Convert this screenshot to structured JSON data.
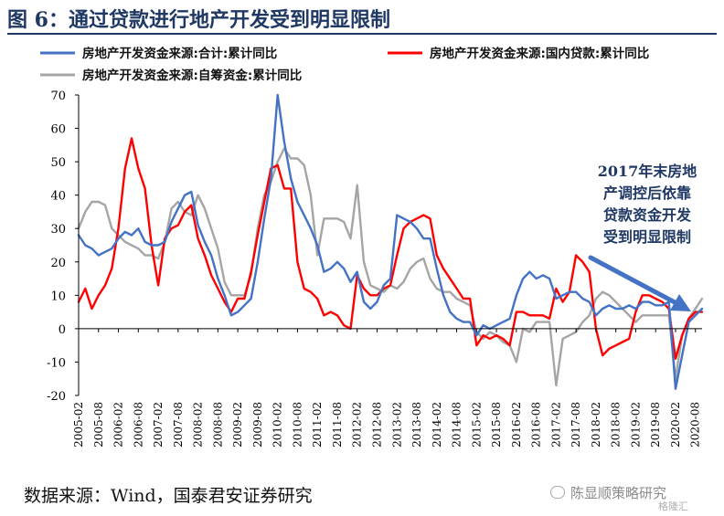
{
  "title": "图 6：通过贷款进行地产开发受到明显限制",
  "source": "数据来源：Wind，国泰君安证券研究",
  "watermark": "陈显顺策略研究",
  "watermark_sub": "格隆汇",
  "annotation": [
    "2017年末房地",
    "产调控后依靠",
    "贷款资金开发",
    "受到明显限制"
  ],
  "colors": {
    "title": "#1f3864",
    "total": "#4472c4",
    "loan": "#ff0000",
    "self": "#a5a5a5",
    "annotation": "#1f3864",
    "arrow": "#4472c4"
  },
  "chart_data": {
    "type": "line",
    "ylim": [
      -20,
      70
    ],
    "yticks": [
      -20,
      -10,
      0,
      10,
      20,
      30,
      40,
      50,
      60,
      70
    ],
    "xlim": [
      "2005-02",
      "2020-10"
    ],
    "xticks": [
      "2005-02",
      "2005-08",
      "2006-02",
      "2006-08",
      "2007-02",
      "2007-08",
      "2008-02",
      "2008-08",
      "2009-02",
      "2009-08",
      "2010-02",
      "2010-08",
      "2011-02",
      "2011-08",
      "2012-02",
      "2012-08",
      "2013-02",
      "2013-08",
      "2014-02",
      "2014-08",
      "2015-02",
      "2015-08",
      "2016-02",
      "2016-08",
      "2017-02",
      "2017-08",
      "2018-02",
      "2018-08",
      "2019-02",
      "2019-08",
      "2020-02",
      "2020-08"
    ],
    "legend_position": "top",
    "series": [
      {
        "name": "房地产开发资金来源:合计:累计同比",
        "color_key": "total",
        "points": [
          [
            "2005-02",
            28
          ],
          [
            "2005-04",
            25
          ],
          [
            "2005-06",
            24
          ],
          [
            "2005-08",
            22
          ],
          [
            "2005-10",
            23
          ],
          [
            "2005-12",
            24
          ],
          [
            "2006-02",
            27
          ],
          [
            "2006-04",
            29
          ],
          [
            "2006-06",
            28
          ],
          [
            "2006-08",
            30
          ],
          [
            "2006-10",
            26
          ],
          [
            "2006-12",
            25
          ],
          [
            "2007-02",
            25
          ],
          [
            "2007-04",
            26
          ],
          [
            "2007-06",
            32
          ],
          [
            "2007-08",
            36
          ],
          [
            "2007-10",
            40
          ],
          [
            "2007-12",
            41
          ],
          [
            "2008-02",
            31
          ],
          [
            "2008-04",
            26
          ],
          [
            "2008-06",
            22
          ],
          [
            "2008-08",
            15
          ],
          [
            "2008-10",
            10
          ],
          [
            "2008-12",
            4
          ],
          [
            "2009-02",
            5
          ],
          [
            "2009-04",
            7
          ],
          [
            "2009-06",
            9
          ],
          [
            "2009-08",
            20
          ],
          [
            "2009-10",
            33
          ],
          [
            "2009-12",
            45
          ],
          [
            "2010-02",
            70
          ],
          [
            "2010-04",
            56
          ],
          [
            "2010-06",
            45
          ],
          [
            "2010-08",
            38
          ],
          [
            "2010-10",
            34
          ],
          [
            "2010-12",
            30
          ],
          [
            "2011-02",
            25
          ],
          [
            "2011-04",
            17
          ],
          [
            "2011-06",
            18
          ],
          [
            "2011-08",
            20
          ],
          [
            "2011-10",
            18
          ],
          [
            "2011-12",
            14
          ],
          [
            "2012-02",
            17
          ],
          [
            "2012-04",
            8
          ],
          [
            "2012-06",
            6
          ],
          [
            "2012-08",
            8
          ],
          [
            "2012-10",
            13
          ],
          [
            "2012-12",
            15
          ],
          [
            "2013-02",
            34
          ],
          [
            "2013-04",
            33
          ],
          [
            "2013-06",
            32
          ],
          [
            "2013-08",
            30
          ],
          [
            "2013-10",
            27
          ],
          [
            "2013-12",
            27
          ],
          [
            "2014-02",
            18
          ],
          [
            "2014-04",
            10
          ],
          [
            "2014-06",
            5
          ],
          [
            "2014-08",
            3
          ],
          [
            "2014-10",
            2
          ],
          [
            "2014-12",
            2
          ],
          [
            "2015-02",
            -2
          ],
          [
            "2015-04",
            1
          ],
          [
            "2015-06",
            0
          ],
          [
            "2015-08",
            1
          ],
          [
            "2015-10",
            2
          ],
          [
            "2015-12",
            3
          ],
          [
            "2016-02",
            10
          ],
          [
            "2016-04",
            15
          ],
          [
            "2016-06",
            17
          ],
          [
            "2016-08",
            15
          ],
          [
            "2016-10",
            16
          ],
          [
            "2016-12",
            15
          ],
          [
            "2017-02",
            9
          ],
          [
            "2017-04",
            10
          ],
          [
            "2017-06",
            11
          ],
          [
            "2017-08",
            11
          ],
          [
            "2017-10",
            9
          ],
          [
            "2017-12",
            8
          ],
          [
            "2018-02",
            4
          ],
          [
            "2018-04",
            6
          ],
          [
            "2018-06",
            7
          ],
          [
            "2018-08",
            6
          ],
          [
            "2018-10",
            6
          ],
          [
            "2018-12",
            7
          ],
          [
            "2019-02",
            6
          ],
          [
            "2019-04",
            8
          ],
          [
            "2019-06",
            8
          ],
          [
            "2019-08",
            7
          ],
          [
            "2019-10",
            7
          ],
          [
            "2019-12",
            8
          ],
          [
            "2020-02",
            -18
          ],
          [
            "2020-04",
            -8
          ],
          [
            "2020-06",
            2
          ],
          [
            "2020-08",
            4
          ],
          [
            "2020-10",
            6
          ]
        ]
      },
      {
        "name": "房地产开发资金来源:国内贷款:累计同比",
        "color_key": "loan",
        "points": [
          [
            "2005-02",
            8
          ],
          [
            "2005-04",
            12
          ],
          [
            "2005-06",
            6
          ],
          [
            "2005-08",
            10
          ],
          [
            "2005-10",
            13
          ],
          [
            "2005-12",
            18
          ],
          [
            "2006-02",
            30
          ],
          [
            "2006-04",
            48
          ],
          [
            "2006-06",
            57
          ],
          [
            "2006-08",
            48
          ],
          [
            "2006-10",
            42
          ],
          [
            "2006-12",
            25
          ],
          [
            "2007-02",
            13
          ],
          [
            "2007-04",
            27
          ],
          [
            "2007-06",
            30
          ],
          [
            "2007-08",
            31
          ],
          [
            "2007-10",
            35
          ],
          [
            "2007-12",
            37
          ],
          [
            "2008-02",
            27
          ],
          [
            "2008-04",
            22
          ],
          [
            "2008-06",
            16
          ],
          [
            "2008-08",
            12
          ],
          [
            "2008-10",
            8
          ],
          [
            "2008-12",
            5
          ],
          [
            "2009-02",
            9
          ],
          [
            "2009-04",
            9
          ],
          [
            "2009-06",
            17
          ],
          [
            "2009-08",
            28
          ],
          [
            "2009-10",
            38
          ],
          [
            "2009-12",
            48
          ],
          [
            "2010-02",
            49
          ],
          [
            "2010-04",
            42
          ],
          [
            "2010-06",
            42
          ],
          [
            "2010-08",
            20
          ],
          [
            "2010-10",
            12
          ],
          [
            "2010-12",
            11
          ],
          [
            "2011-02",
            9
          ],
          [
            "2011-04",
            4
          ],
          [
            "2011-06",
            5
          ],
          [
            "2011-08",
            4
          ],
          [
            "2011-10",
            1
          ],
          [
            "2011-12",
            0
          ],
          [
            "2012-02",
            16
          ],
          [
            "2012-04",
            12
          ],
          [
            "2012-06",
            10
          ],
          [
            "2012-08",
            10
          ],
          [
            "2012-10",
            12
          ],
          [
            "2012-12",
            13
          ],
          [
            "2013-02",
            22
          ],
          [
            "2013-04",
            30
          ],
          [
            "2013-06",
            32
          ],
          [
            "2013-08",
            33
          ],
          [
            "2013-10",
            34
          ],
          [
            "2013-12",
            33
          ],
          [
            "2014-02",
            22
          ],
          [
            "2014-04",
            18
          ],
          [
            "2014-06",
            15
          ],
          [
            "2014-08",
            12
          ],
          [
            "2014-10",
            9
          ],
          [
            "2014-12",
            9
          ],
          [
            "2015-02",
            -5
          ],
          [
            "2015-04",
            -2
          ],
          [
            "2015-06",
            -3
          ],
          [
            "2015-08",
            -2
          ],
          [
            "2015-10",
            -3
          ],
          [
            "2015-12",
            -5
          ],
          [
            "2016-02",
            5
          ],
          [
            "2016-04",
            5
          ],
          [
            "2016-06",
            4
          ],
          [
            "2016-08",
            4
          ],
          [
            "2016-10",
            4
          ],
          [
            "2016-12",
            3
          ],
          [
            "2017-02",
            12
          ],
          [
            "2017-04",
            8
          ],
          [
            "2017-06",
            11
          ],
          [
            "2017-08",
            22
          ],
          [
            "2017-10",
            20
          ],
          [
            "2017-12",
            17
          ],
          [
            "2018-02",
            0
          ],
          [
            "2018-04",
            -8
          ],
          [
            "2018-06",
            -6
          ],
          [
            "2018-08",
            -5
          ],
          [
            "2018-10",
            -4
          ],
          [
            "2018-12",
            -3
          ],
          [
            "2019-02",
            5
          ],
          [
            "2019-04",
            10
          ],
          [
            "2019-06",
            10
          ],
          [
            "2019-08",
            9
          ],
          [
            "2019-10",
            8
          ],
          [
            "2019-12",
            6
          ],
          [
            "2020-02",
            -9
          ],
          [
            "2020-04",
            -2
          ],
          [
            "2020-06",
            3
          ],
          [
            "2020-08",
            5
          ],
          [
            "2020-10",
            5
          ]
        ]
      },
      {
        "name": "房地产开发资金来源:自筹资金:累计同比",
        "color_key": "self",
        "points": [
          [
            "2005-02",
            30
          ],
          [
            "2005-04",
            35
          ],
          [
            "2005-06",
            38
          ],
          [
            "2005-08",
            38
          ],
          [
            "2005-10",
            37
          ],
          [
            "2005-12",
            30
          ],
          [
            "2006-02",
            28
          ],
          [
            "2006-04",
            26
          ],
          [
            "2006-06",
            25
          ],
          [
            "2006-08",
            24
          ],
          [
            "2006-10",
            22
          ],
          [
            "2006-12",
            22
          ],
          [
            "2007-02",
            21
          ],
          [
            "2007-04",
            26
          ],
          [
            "2007-06",
            36
          ],
          [
            "2007-08",
            38
          ],
          [
            "2007-10",
            35
          ],
          [
            "2007-12",
            34
          ],
          [
            "2008-02",
            40
          ],
          [
            "2008-04",
            36
          ],
          [
            "2008-06",
            30
          ],
          [
            "2008-08",
            24
          ],
          [
            "2008-10",
            14
          ],
          [
            "2008-12",
            10
          ],
          [
            "2009-02",
            10
          ],
          [
            "2009-04",
            10
          ],
          [
            "2009-06",
            16
          ],
          [
            "2009-08",
            30
          ],
          [
            "2009-10",
            40
          ],
          [
            "2009-12",
            44
          ],
          [
            "2010-02",
            50
          ],
          [
            "2010-04",
            54
          ],
          [
            "2010-06",
            51
          ],
          [
            "2010-08",
            51
          ],
          [
            "2010-10",
            49
          ],
          [
            "2010-12",
            40
          ],
          [
            "2011-02",
            22
          ],
          [
            "2011-04",
            33
          ],
          [
            "2011-06",
            33
          ],
          [
            "2011-08",
            33
          ],
          [
            "2011-10",
            32
          ],
          [
            "2011-12",
            27
          ],
          [
            "2012-02",
            43
          ],
          [
            "2012-04",
            20
          ],
          [
            "2012-06",
            13
          ],
          [
            "2012-08",
            12
          ],
          [
            "2012-10",
            11
          ],
          [
            "2012-12",
            13
          ],
          [
            "2013-02",
            12
          ],
          [
            "2013-04",
            14
          ],
          [
            "2013-06",
            18
          ],
          [
            "2013-08",
            20
          ],
          [
            "2013-10",
            21
          ],
          [
            "2013-12",
            15
          ],
          [
            "2014-02",
            12
          ],
          [
            "2014-04",
            11
          ],
          [
            "2014-06",
            11
          ],
          [
            "2014-08",
            9
          ],
          [
            "2014-10",
            8
          ],
          [
            "2014-12",
            7
          ],
          [
            "2015-02",
            -1
          ],
          [
            "2015-04",
            -3
          ],
          [
            "2015-06",
            -1
          ],
          [
            "2015-08",
            -2
          ],
          [
            "2015-10",
            -4
          ],
          [
            "2015-12",
            -5
          ],
          [
            "2016-02",
            -10
          ],
          [
            "2016-04",
            0
          ],
          [
            "2016-06",
            -1
          ],
          [
            "2016-08",
            2
          ],
          [
            "2016-10",
            2
          ],
          [
            "2016-12",
            2
          ],
          [
            "2017-02",
            -17
          ],
          [
            "2017-04",
            -3
          ],
          [
            "2017-06",
            -2
          ],
          [
            "2017-08",
            -1
          ],
          [
            "2017-10",
            2
          ],
          [
            "2017-12",
            4
          ],
          [
            "2018-02",
            9
          ],
          [
            "2018-04",
            11
          ],
          [
            "2018-06",
            10
          ],
          [
            "2018-08",
            8
          ],
          [
            "2018-10",
            6
          ],
          [
            "2018-12",
            4
          ],
          [
            "2019-02",
            2
          ],
          [
            "2019-04",
            4
          ],
          [
            "2019-06",
            4
          ],
          [
            "2019-08",
            4
          ],
          [
            "2019-10",
            4
          ],
          [
            "2019-12",
            4
          ],
          [
            "2020-02",
            -15
          ],
          [
            "2020-04",
            -2
          ],
          [
            "2020-06",
            3
          ],
          [
            "2020-08",
            6
          ],
          [
            "2020-10",
            9
          ]
        ]
      }
    ]
  }
}
